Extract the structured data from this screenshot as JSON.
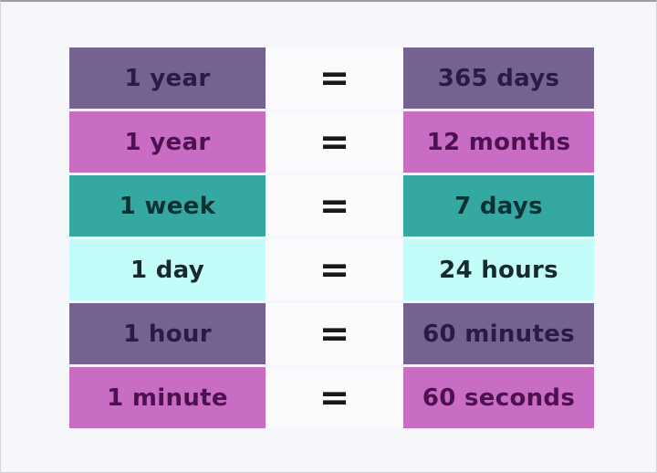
{
  "page": {
    "background": "#f6f7fa",
    "border_color": "#c7c8cd"
  },
  "equals": {
    "symbol": "=",
    "color": "#191919",
    "cell_background": "#fbfbfd"
  },
  "chart_data": {
    "type": "table",
    "columns": [
      "unit",
      "equivalent"
    ],
    "legend": "none",
    "grid": "off",
    "rows": [
      {
        "unit": "1 year",
        "equivalent": "365 days",
        "row_background": "#746390",
        "text_color": "#2b1a47"
      },
      {
        "unit": "1 year",
        "equivalent": "12 months",
        "row_background": "#c96cc3",
        "text_color": "#4c1150"
      },
      {
        "unit": "1 week",
        "equivalent": "7 days",
        "row_background": "#36a8a2",
        "text_color": "#0c3034"
      },
      {
        "unit": "1 day",
        "equivalent": "24 hours",
        "row_background": "#c3fdf9",
        "text_color": "#182a2c"
      },
      {
        "unit": "1 hour",
        "equivalent": "60 minutes",
        "row_background": "#746390",
        "text_color": "#2b1a47"
      },
      {
        "unit": "1 minute",
        "equivalent": "60 seconds",
        "row_background": "#c96cc3",
        "text_color": "#4c1150"
      }
    ]
  }
}
